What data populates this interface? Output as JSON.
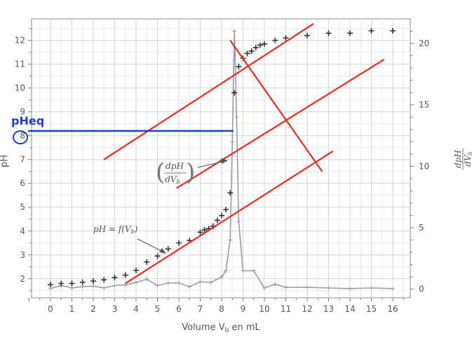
{
  "chart_data": {
    "type": "scatter",
    "xlabel": "Volume V",
    "xlabel_sub": "b",
    "xlabel_suffix": " en mL",
    "ylabel_left": "pH",
    "ylabel_right_num": "dpH",
    "ylabel_right_den": "dV",
    "ylabel_right_den_sub": "b",
    "xlim": [
      -1,
      16.8
    ],
    "ylim_left": [
      1.2,
      12.9
    ],
    "ylim_right": [
      -0.7,
      22
    ],
    "x_ticks": [
      0,
      1,
      2,
      3,
      4,
      5,
      6,
      7,
      8,
      9,
      10,
      11,
      12,
      13,
      14,
      15,
      16
    ],
    "y_ticks_left": [
      2,
      3,
      4,
      5,
      6,
      7,
      8,
      9,
      10,
      11,
      12
    ],
    "y_ticks_right": [
      0,
      5,
      10,
      15,
      20
    ],
    "grid": true,
    "series": [
      {
        "name": "pH = f(Vb)",
        "axis": "left",
        "marker": "plus",
        "color": "#333333",
        "points": [
          [
            0,
            1.75
          ],
          [
            0.5,
            1.8
          ],
          [
            1,
            1.8
          ],
          [
            1.5,
            1.85
          ],
          [
            2,
            1.9
          ],
          [
            2.5,
            1.95
          ],
          [
            3,
            2.05
          ],
          [
            3.5,
            2.15
          ],
          [
            4,
            2.35
          ],
          [
            4.5,
            2.7
          ],
          [
            5,
            2.95
          ],
          [
            5.5,
            3.25
          ],
          [
            6,
            3.5
          ],
          [
            6.5,
            3.6
          ],
          [
            7,
            3.95
          ],
          [
            7.2,
            4.05
          ],
          [
            7.4,
            4.1
          ],
          [
            7.6,
            4.2
          ],
          [
            7.8,
            4.45
          ],
          [
            8,
            4.65
          ],
          [
            8.2,
            4.9
          ],
          [
            8.4,
            5.6
          ],
          [
            8.6,
            9.8
          ],
          [
            8.8,
            10.9
          ],
          [
            9,
            11.25
          ],
          [
            9.2,
            11.45
          ],
          [
            9.4,
            11.55
          ],
          [
            9.6,
            11.7
          ],
          [
            9.8,
            11.8
          ],
          [
            10,
            11.85
          ],
          [
            10.5,
            12.0
          ],
          [
            11,
            12.1
          ],
          [
            12,
            12.2
          ],
          [
            13,
            12.3
          ],
          [
            14,
            12.3
          ],
          [
            15,
            12.4
          ],
          [
            16,
            12.4
          ]
        ]
      },
      {
        "name": "dpH/dVb",
        "axis": "right",
        "marker": "line",
        "color": "#9a9aaa",
        "points": [
          [
            0,
            0.05
          ],
          [
            0.5,
            0.3
          ],
          [
            1,
            0.1
          ],
          [
            1.5,
            0.2
          ],
          [
            2,
            0.25
          ],
          [
            2.5,
            0.1
          ],
          [
            3,
            0.3
          ],
          [
            3.5,
            0.35
          ],
          [
            4,
            0.55
          ],
          [
            4.5,
            0.8
          ],
          [
            5,
            0.3
          ],
          [
            5.5,
            0.5
          ],
          [
            6,
            0.5
          ],
          [
            6.5,
            0.2
          ],
          [
            7,
            0.6
          ],
          [
            7.5,
            0.55
          ],
          [
            8,
            1.0
          ],
          [
            8.2,
            1.5
          ],
          [
            8.4,
            4.0
          ],
          [
            8.5,
            12.0
          ],
          [
            8.6,
            21.0
          ],
          [
            8.7,
            14.0
          ],
          [
            8.8,
            5.5
          ],
          [
            9,
            1.5
          ],
          [
            9.5,
            1.5
          ],
          [
            10,
            0.1
          ],
          [
            10.5,
            0.4
          ],
          [
            11,
            0.15
          ],
          [
            12,
            0.15
          ],
          [
            13,
            0.1
          ],
          [
            14,
            0.05
          ],
          [
            15,
            0.1
          ],
          [
            16,
            0.05
          ]
        ]
      }
    ],
    "annotations": {
      "ph_curve_label": "pH = f(V",
      "ph_curve_label_sub": "b",
      "ph_curve_label_end": ")",
      "derivative_label_num": "dpH",
      "derivative_label_den": "dV",
      "derivative_label_sub": "b",
      "pheq_label": "pHeq",
      "pheq_value": 8.2,
      "equivalence_volume": 8.55,
      "pheq_color": "#1a3fd6",
      "tangent_color": "#ee2a1a",
      "tangent_upper": [
        [
          2.5,
          7.0
        ],
        [
          12.3,
          12.7
        ]
      ],
      "tangent_middle": [
        [
          5.9,
          5.8
        ],
        [
          15.6,
          11.2
        ]
      ],
      "tangent_lower": [
        [
          3.5,
          1.8
        ],
        [
          13.2,
          7.35
        ]
      ],
      "perpendicular": [
        [
          8.4,
          12.0
        ],
        [
          12.7,
          6.5
        ]
      ],
      "pheq_line": [
        [
          -1,
          8.2
        ],
        [
          8.55,
          8.2
        ]
      ]
    }
  }
}
